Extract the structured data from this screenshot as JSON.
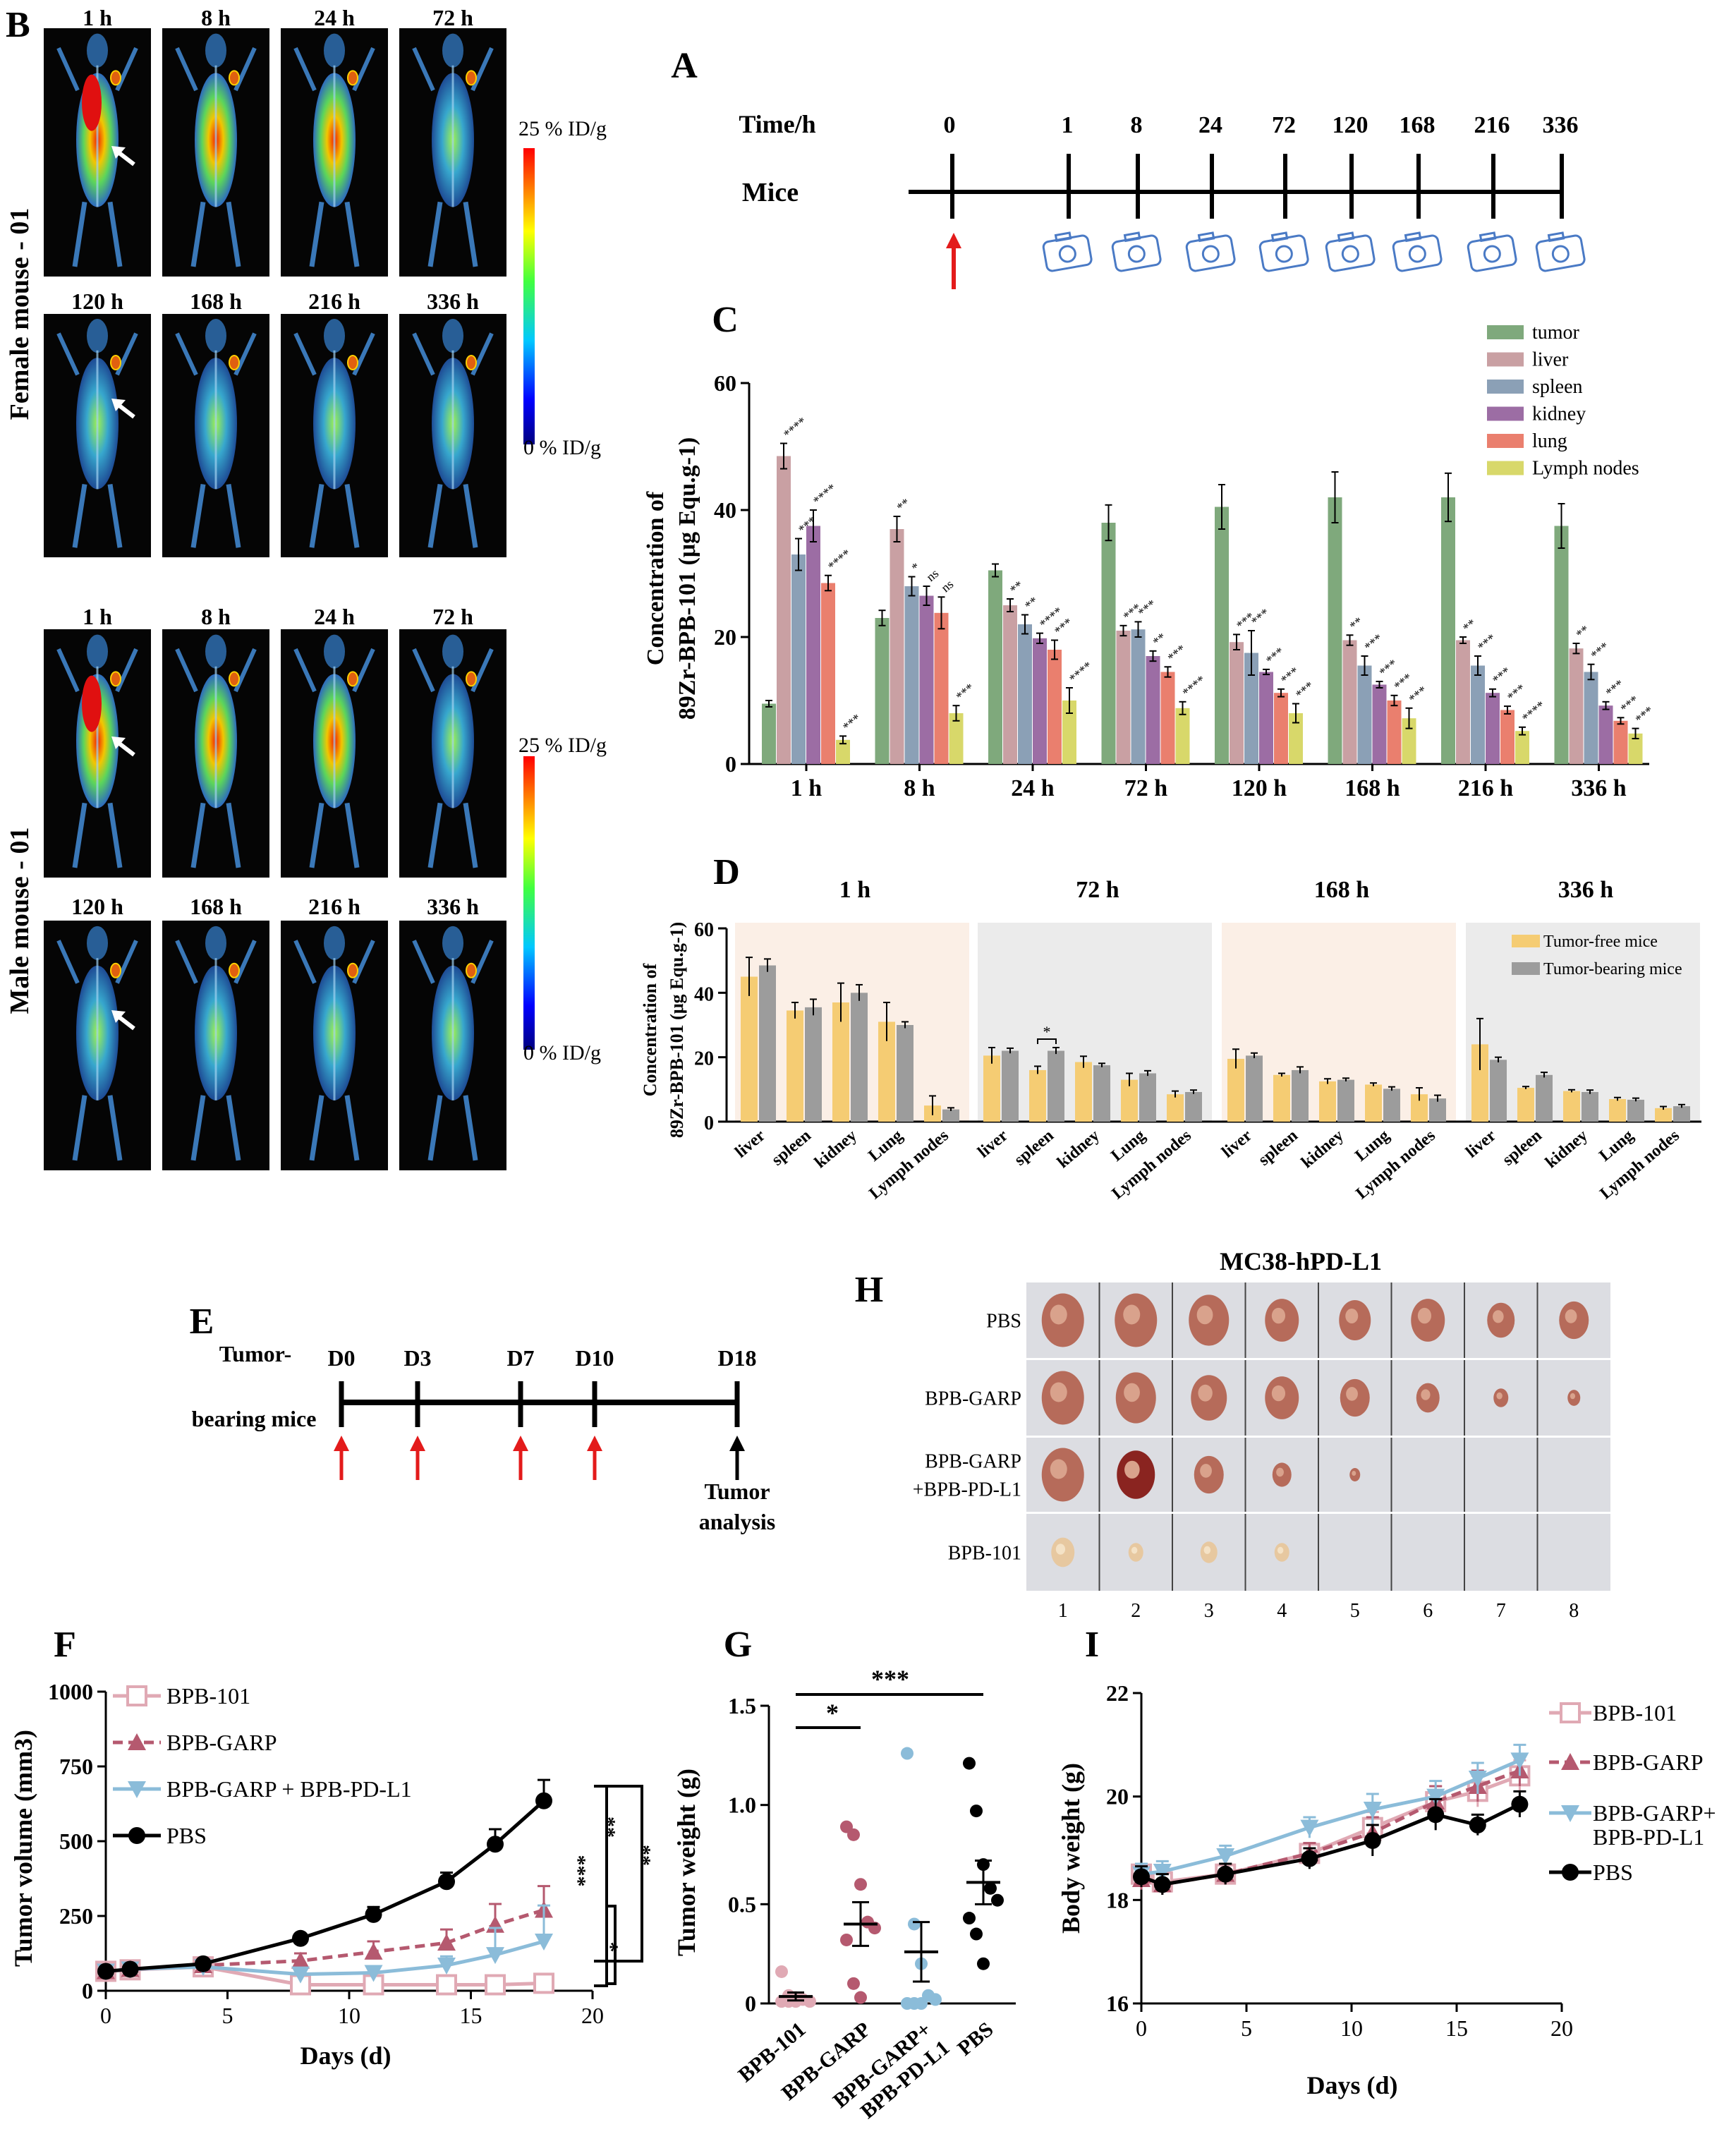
{
  "colors": {
    "tumor": "#7fa97c",
    "liver": "#c9a0a3",
    "spleen": "#8ba0b6",
    "kidney": "#9c6da4",
    "lung": "#ea7f6e",
    "lymph": "#d8d86a",
    "tumor_free": "#f5cc73",
    "tumor_bearing": "#9c9c9c",
    "shade_peach": "#fbefe6",
    "shade_gray": "#ebebeb",
    "bpb101": "#e0a9b4",
    "bpbgarp": "#b5596f",
    "combo": "#8bbcd9",
    "pbs": "#000000",
    "arrow_red": "#e31b1b",
    "camera": "#4a7ac5"
  },
  "panelB": {
    "label": "B",
    "female_label": "Female mouse - 01",
    "male_label": "Male mouse - 01",
    "row_times_top": [
      "1 h",
      "8 h",
      "24 h",
      "72 h"
    ],
    "row_times_bottom": [
      "120 h",
      "168 h",
      "216 h",
      "336 h"
    ],
    "scale_max": "25 % ID/g",
    "scale_min": "0 % ID/g"
  },
  "panelA": {
    "label": "A",
    "time_label": "Time/h",
    "mice_label": "Mice",
    "times": [
      "0",
      "1",
      "8",
      "24",
      "72",
      "120",
      "168",
      "216",
      "336"
    ]
  },
  "panelE": {
    "label": "E",
    "left_label_1": "Tumor-",
    "left_label_2": "bearing mice",
    "days": [
      "D0",
      "D3",
      "D7",
      "D10",
      "D18"
    ],
    "end_label_1": "Tumor",
    "end_label_2": "analysis"
  },
  "panelH": {
    "label": "H",
    "title": "MC38-hPD-L1",
    "rows": [
      "PBS",
      "BPB-GARP",
      "BPB-GARP",
      "+BPB-PD-L1",
      "BPB-101"
    ],
    "columns": [
      "1",
      "2",
      "3",
      "4",
      "5",
      "6",
      "7",
      "8"
    ],
    "tumor_counts": [
      8,
      8,
      5,
      4
    ],
    "tumor_sizes": [
      [
        1.0,
        1.0,
        0.95,
        0.8,
        0.75,
        0.8,
        0.65,
        0.7
      ],
      [
        1.0,
        0.95,
        0.85,
        0.8,
        0.7,
        0.55,
        0.35,
        0.3
      ],
      [
        1.0,
        0.9,
        0.7,
        0.45,
        0.25
      ],
      [
        0.55,
        0.35,
        0.4,
        0.35
      ]
    ]
  },
  "chart_data": [
    {
      "id": "C",
      "label": "C",
      "type": "bar",
      "title": "",
      "ylabel_1": "Concentration of",
      "ylabel_2": "89Zr-BPB-101 (μg Equ.g-1)",
      "ylim": [
        0,
        60
      ],
      "yticks": [
        "0",
        "20",
        "40",
        "60"
      ],
      "categories": [
        "1 h",
        "8 h",
        "24 h",
        "72 h",
        "120 h",
        "168 h",
        "216 h",
        "336 h"
      ],
      "series": [
        {
          "name": "tumor",
          "values": [
            9.5,
            23,
            30.5,
            38,
            40.5,
            42,
            42,
            37.5
          ],
          "err": [
            0.5,
            1.2,
            1,
            2.8,
            3.5,
            4,
            3.8,
            3.5
          ]
        },
        {
          "name": "liver",
          "values": [
            48.5,
            37,
            25,
            21,
            19.2,
            19.5,
            19.5,
            18.2
          ],
          "err": [
            2,
            2,
            1,
            0.8,
            1.2,
            0.8,
            0.5,
            0.8
          ]
        },
        {
          "name": "spleen",
          "values": [
            33,
            28,
            22,
            21.2,
            17.5,
            15.5,
            15.5,
            14.5
          ],
          "err": [
            2.5,
            1.5,
            1.5,
            1.2,
            3.5,
            1.5,
            1.5,
            1.2
          ]
        },
        {
          "name": "kidney",
          "values": [
            37.5,
            26.5,
            19.8,
            17,
            14.5,
            12.5,
            11.2,
            9.2
          ],
          "err": [
            2.5,
            1.5,
            0.8,
            0.8,
            0.4,
            0.5,
            0.6,
            0.6
          ]
        },
        {
          "name": "lung",
          "values": [
            28.5,
            23.8,
            18,
            14.5,
            11.2,
            10,
            8.5,
            6.8
          ],
          "err": [
            1.2,
            2.5,
            1.5,
            0.8,
            0.6,
            0.8,
            0.6,
            0.5
          ]
        },
        {
          "name": "Lymph nodes",
          "values": [
            3.8,
            8,
            10,
            8.8,
            8,
            7.2,
            5.2,
            4.8
          ],
          "err": [
            0.6,
            1.2,
            2,
            1,
            1.5,
            1.6,
            0.6,
            0.8
          ]
        }
      ],
      "sig": [
        [
          "",
          "****",
          "***",
          "****",
          "****",
          "***"
        ],
        [
          "",
          "**",
          "*",
          "ns",
          "ns",
          "***"
        ],
        [
          "",
          "**",
          "**",
          "****",
          "***",
          "****"
        ],
        [
          "",
          "***",
          "***",
          "**",
          "***",
          "****"
        ],
        [
          "",
          "***",
          "***",
          "***",
          "***",
          "***"
        ],
        [
          "",
          "**",
          "***",
          "***",
          "***",
          "***"
        ],
        [
          "",
          "**",
          "***",
          "***",
          "***",
          "****"
        ],
        [
          "",
          "**",
          "***",
          "***",
          "***",
          "***"
        ]
      ]
    },
    {
      "id": "D",
      "label": "D",
      "type": "bar",
      "ylabel_1": "Concentration of",
      "ylabel_2": "89Zr-BPB-101 (μg Equ.g-1)",
      "ylim": [
        0,
        60
      ],
      "yticks": [
        "0",
        "20",
        "40",
        "60"
      ],
      "groups": [
        "1 h",
        "72 h",
        "168 h",
        "336 h"
      ],
      "organs": [
        "liver",
        "spleen",
        "kidney",
        "Lung",
        "Lymph nodes"
      ],
      "series_names": [
        "Tumor-free mice",
        "Tumor-bearing mice"
      ],
      "tumor_free": [
        [
          45,
          34.5,
          37,
          31,
          5
        ],
        [
          20.5,
          16,
          18.5,
          13,
          8.5
        ],
        [
          19.5,
          14.5,
          12.5,
          11.5,
          8.5
        ],
        [
          24,
          10.5,
          9.5,
          7,
          4.2
        ]
      ],
      "tumor_free_err": [
        [
          6,
          2.5,
          6,
          6,
          3
        ],
        [
          2.5,
          1.2,
          1.8,
          2,
          1
        ],
        [
          3,
          0.5,
          0.8,
          0.5,
          2
        ],
        [
          8,
          0.4,
          0.4,
          0.5,
          0.5
        ]
      ],
      "tumor_bearing": [
        [
          48.5,
          35.5,
          40,
          30,
          3.8
        ],
        [
          22,
          22,
          17.5,
          15,
          9.2
        ],
        [
          20.5,
          16,
          13,
          10.2,
          7.2
        ],
        [
          19.2,
          14.5,
          9.2,
          6.8,
          4.8
        ]
      ],
      "tumor_bearing_err": [
        [
          2,
          2.5,
          2.5,
          1,
          0.5
        ],
        [
          0.8,
          1,
          0.6,
          0.8,
          0.6
        ],
        [
          0.8,
          1,
          0.5,
          0.6,
          1
        ],
        [
          0.8,
          0.8,
          0.6,
          0.5,
          0.5
        ]
      ],
      "sig_text": "*"
    },
    {
      "id": "F",
      "label": "F",
      "type": "line",
      "xlabel": "Days (d)",
      "ylabel": "Tumor volume (mm3)",
      "xlim": [
        0,
        20
      ],
      "ylim": [
        0,
        1000
      ],
      "xticks": [
        "0",
        "5",
        "10",
        "15",
        "20"
      ],
      "yticks": [
        "0",
        "250",
        "500",
        "750",
        "1000"
      ],
      "x": [
        0,
        1,
        4,
        8,
        11,
        14,
        16,
        18
      ],
      "series": [
        {
          "name": "BPB-101",
          "values": [
            65,
            70,
            80,
            20,
            20,
            20,
            20,
            25
          ],
          "err": [
            8,
            8,
            10,
            8,
            8,
            8,
            8,
            10
          ]
        },
        {
          "name": "BPB-GARP",
          "values": [
            65,
            72,
            85,
            100,
            130,
            160,
            220,
            270
          ],
          "err": [
            8,
            8,
            10,
            25,
            35,
            45,
            70,
            80
          ]
        },
        {
          "name": "BPB-GARP + BPB-PD-L1",
          "values": [
            65,
            72,
            80,
            55,
            60,
            85,
            120,
            165
          ],
          "err": [
            8,
            8,
            10,
            15,
            20,
            30,
            90,
            120
          ]
        },
        {
          "name": "PBS",
          "values": [
            65,
            72,
            90,
            175,
            255,
            365,
            490,
            635
          ],
          "err": [
            8,
            8,
            10,
            10,
            25,
            30,
            50,
            70
          ]
        }
      ],
      "sig": [
        "***",
        "**",
        "*",
        "**"
      ]
    },
    {
      "id": "G",
      "label": "G",
      "type": "scatter",
      "ylabel": "Tumor weight (g)",
      "ylim": [
        0,
        1.5
      ],
      "yticks": [
        "0",
        "0.5",
        "1.0",
        "1.5"
      ],
      "categories": [
        "BPB-101",
        "BPB-GARP",
        "BPB-GARP+\nBPB-PD-L1",
        "PBS"
      ],
      "category_lines": [
        [
          "BPB-101"
        ],
        [
          "BPB-GARP"
        ],
        [
          "BPB-GARP+",
          "BPB-PD-L1"
        ],
        [
          "PBS"
        ]
      ],
      "points": [
        [
          0.16,
          0.04,
          0.03,
          0.02,
          0.01,
          0.01,
          0.01,
          0.01
        ],
        [
          0.89,
          0.85,
          0.6,
          0.41,
          0.38,
          0.32,
          0.1,
          0.03
        ],
        [
          1.26,
          0.4,
          0.2,
          0.04,
          0.02,
          0.0,
          0.0,
          0.0
        ],
        [
          1.21,
          0.97,
          0.7,
          0.58,
          0.52,
          0.43,
          0.35,
          0.2
        ]
      ],
      "mean": [
        0.035,
        0.4,
        0.26,
        0.61
      ],
      "sem": [
        0.02,
        0.11,
        0.15,
        0.11
      ],
      "sig": [
        "*",
        "***"
      ]
    },
    {
      "id": "I",
      "label": "I",
      "type": "line",
      "xlabel": "Days (d)",
      "ylabel": "Body weight (g)",
      "xlim": [
        0,
        20
      ],
      "ylim": [
        16,
        22
      ],
      "xticks": [
        "0",
        "5",
        "10",
        "15",
        "20"
      ],
      "yticks": [
        "16",
        "18",
        "20",
        "22"
      ],
      "x": [
        0,
        1,
        4,
        8,
        11,
        14,
        16,
        18
      ],
      "series": [
        {
          "name": "BPB-101",
          "values": [
            18.5,
            18.35,
            18.5,
            18.9,
            19.4,
            19.9,
            20.1,
            20.4
          ],
          "err": [
            0.2,
            0.2,
            0.2,
            0.2,
            0.3,
            0.3,
            0.3,
            0.3
          ]
        },
        {
          "name": "BPB-GARP",
          "values": [
            18.4,
            18.3,
            18.5,
            18.9,
            19.3,
            19.9,
            20.2,
            20.5
          ],
          "err": [
            0.2,
            0.2,
            0.2,
            0.2,
            0.3,
            0.3,
            0.3,
            0.3
          ]
        },
        {
          "name": "BPB-GARP+\nBPB-PD-L1",
          "values": [
            18.5,
            18.55,
            18.85,
            19.4,
            19.75,
            20.0,
            20.35,
            20.7
          ],
          "err": [
            0.2,
            0.2,
            0.2,
            0.2,
            0.3,
            0.3,
            0.3,
            0.3
          ]
        },
        {
          "name": "PBS",
          "values": [
            18.45,
            18.3,
            18.5,
            18.8,
            19.15,
            19.65,
            19.45,
            19.85
          ],
          "err": [
            0.2,
            0.2,
            0.2,
            0.2,
            0.3,
            0.3,
            0.2,
            0.25
          ]
        }
      ],
      "legend_lines": [
        [
          "BPB-101"
        ],
        [
          "BPB-GARP"
        ],
        [
          "BPB-GARP+",
          "BPB-PD-L1"
        ],
        [
          "PBS"
        ]
      ]
    }
  ]
}
